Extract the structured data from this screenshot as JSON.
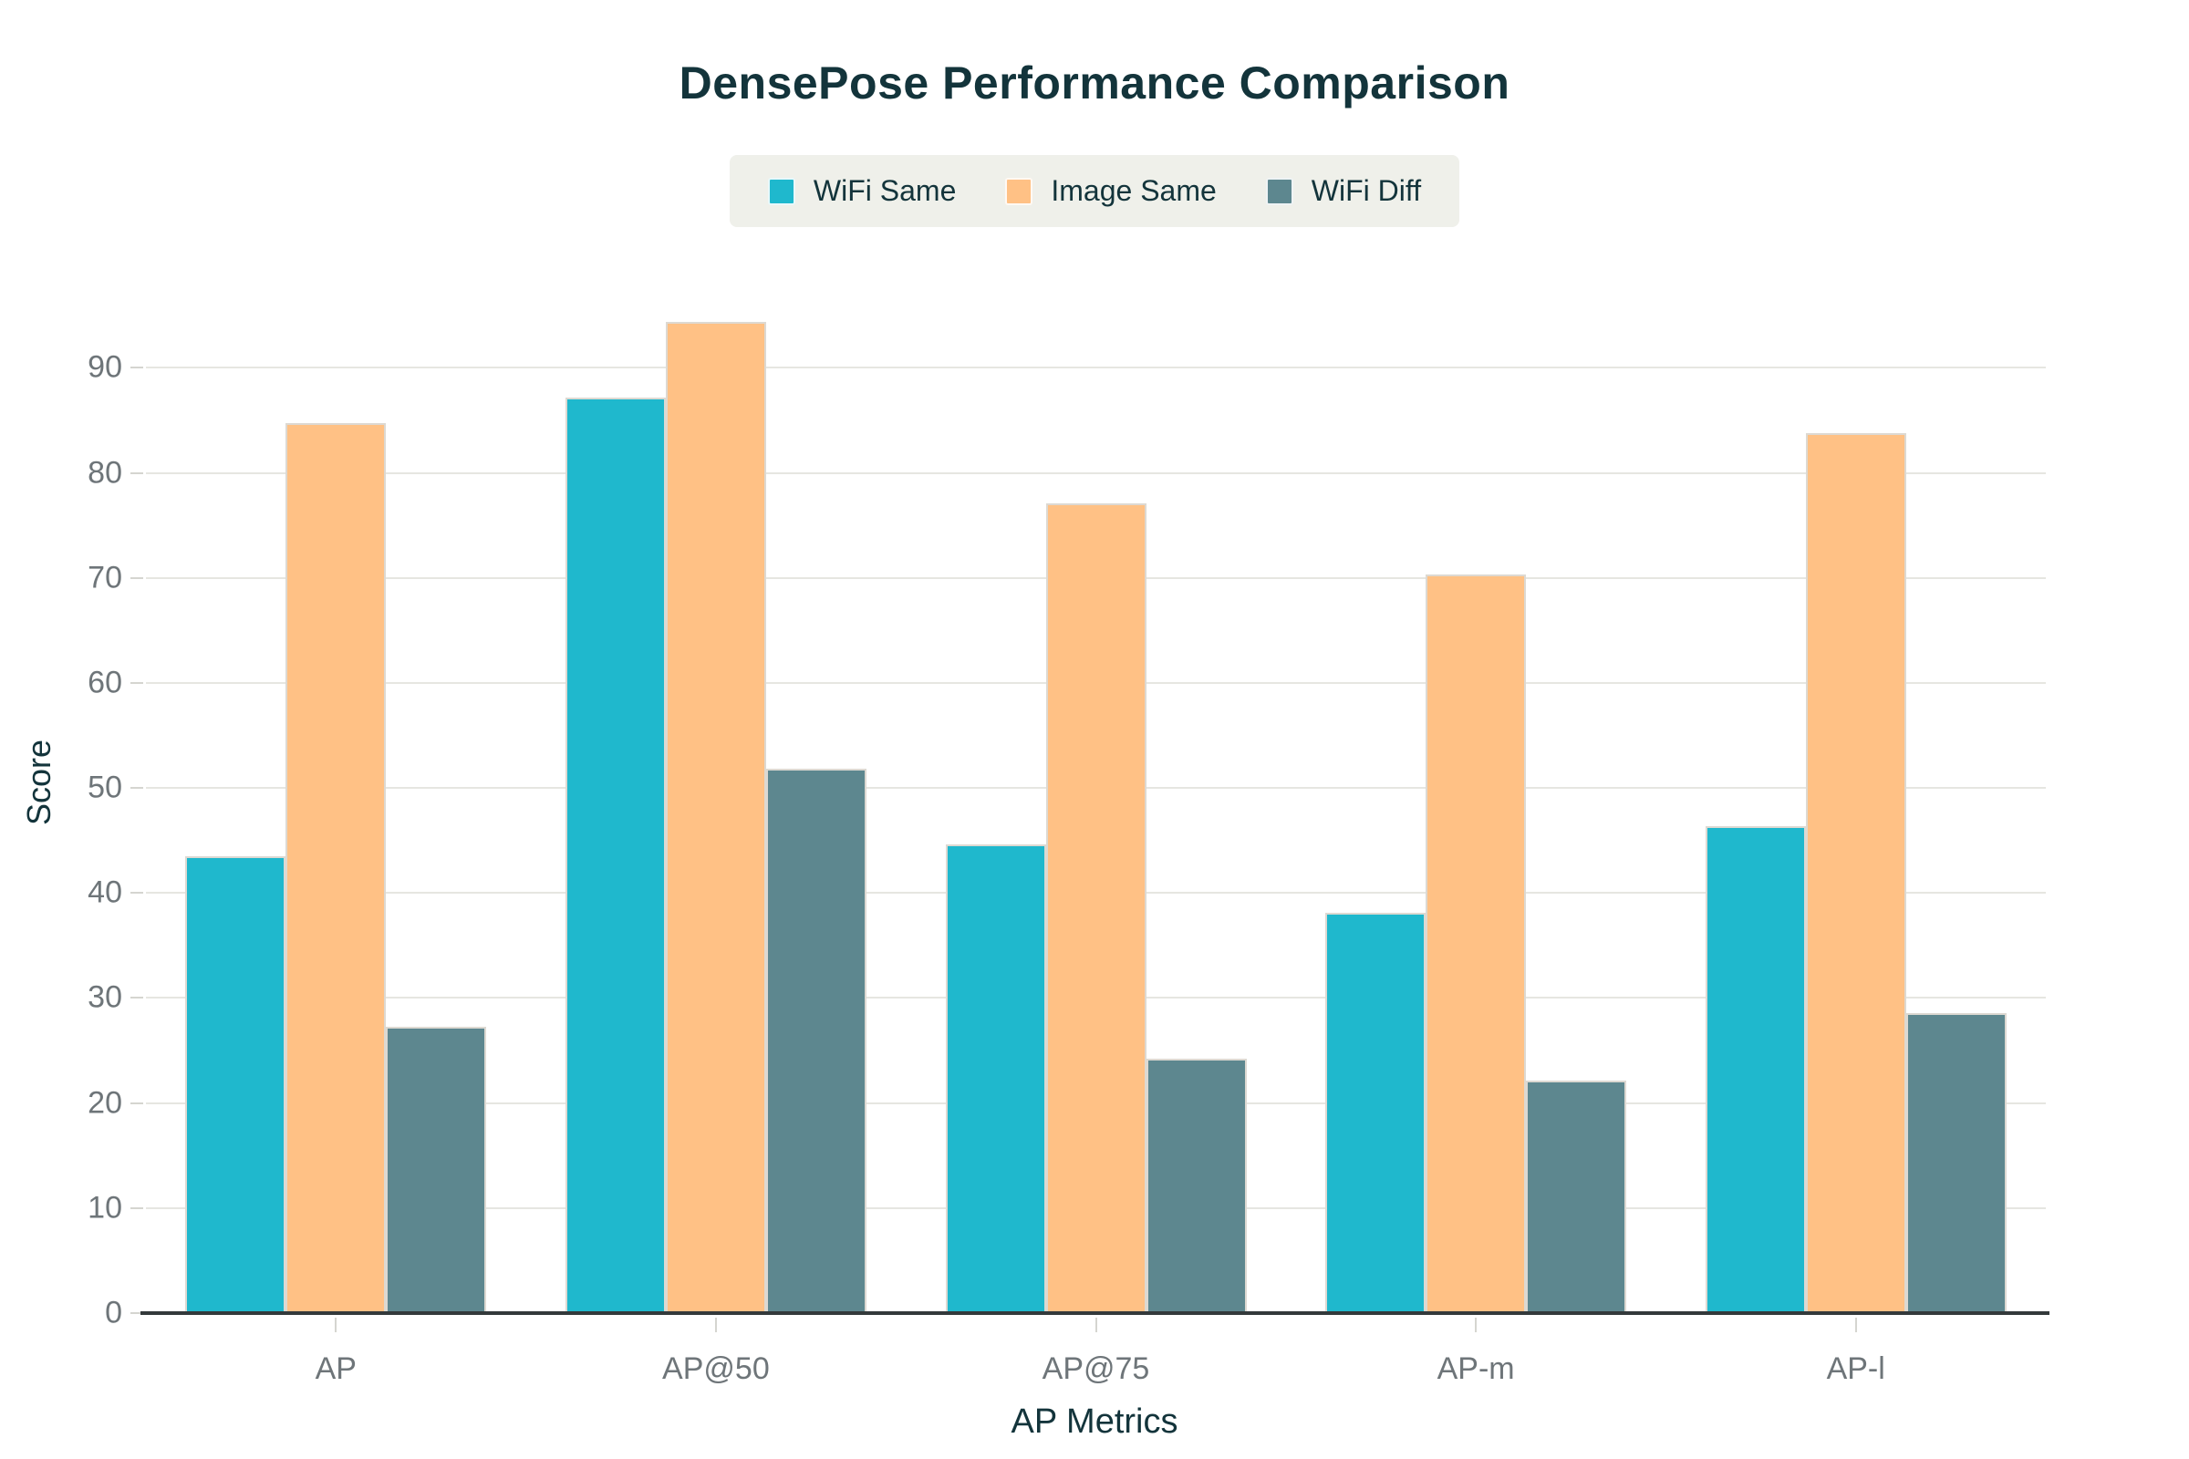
{
  "chart_data": {
    "type": "bar",
    "title": "DensePose Performance Comparison",
    "xlabel": "AP Metrics",
    "ylabel": "Score",
    "categories": [
      "AP",
      "AP@50",
      "AP@75",
      "AP-m",
      "AP-l"
    ],
    "series": [
      {
        "name": "WiFi Same",
        "color": "#1FB8CD",
        "values": [
          43.5,
          87.2,
          44.6,
          38.1,
          46.4
        ]
      },
      {
        "name": "Image Same",
        "color": "#FFC185",
        "values": [
          84.7,
          94.4,
          77.1,
          70.3,
          83.8
        ]
      },
      {
        "name": "WiFi Diff",
        "color": "#5D878F",
        "values": [
          27.3,
          51.8,
          24.2,
          22.1,
          28.6
        ]
      }
    ],
    "yticks": [
      0,
      10,
      20,
      30,
      40,
      50,
      60,
      70,
      80,
      90
    ],
    "ylim": [
      0,
      95.5
    ],
    "grid": true,
    "legend_position": "top-center"
  },
  "colors": {
    "background": "#FFFFFF",
    "title_text": "#13343B",
    "tick_text": "#6E7579",
    "gridline": "#E6E6E1",
    "axis_line": "#33393B",
    "tick_mark": "#D5D5D0",
    "legend_background": "#EFF0EA",
    "bar_border": "#DDD9D2"
  }
}
